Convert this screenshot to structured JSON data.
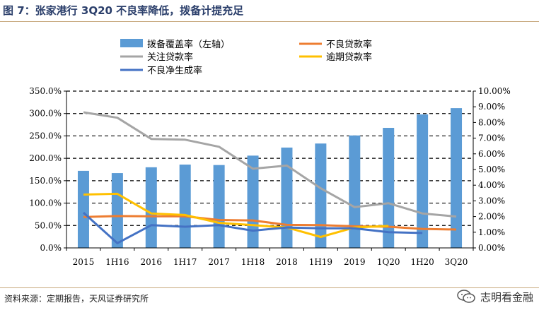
{
  "header": {
    "title": "图 7：张家港行 3Q20 不良率降低，拨备计提充足"
  },
  "footer": {
    "source": "资料来源：定期报告，天风证券研究所",
    "watermark_text": "志明看金融",
    "watermark_icon": "wechat-icon"
  },
  "chart_data": {
    "type": "bar",
    "categories": [
      "2015",
      "1H16",
      "2016",
      "1H17",
      "2017",
      "1H18",
      "2018",
      "1H19",
      "2019",
      "1Q20",
      "1H20",
      "3Q20"
    ],
    "series": [
      {
        "name": "拨备覆盖率（左轴）",
        "type": "bar",
        "axis": "left",
        "color": "#5b9bd5",
        "values": [
          172,
          167,
          180,
          186,
          185,
          206,
          224,
          233,
          251,
          268,
          298,
          312
        ]
      },
      {
        "name": "不良贷款率",
        "type": "line",
        "axis": "right",
        "color": "#ed7d31",
        "values": [
          1.97,
          2.03,
          2.02,
          2.02,
          1.78,
          1.75,
          1.47,
          1.45,
          1.38,
          1.35,
          1.21,
          1.17
        ]
      },
      {
        "name": "关注贷款率",
        "type": "line",
        "axis": "right",
        "color": "#a5a5a5",
        "values": [
          8.65,
          8.3,
          6.95,
          6.9,
          6.45,
          5.05,
          5.25,
          3.8,
          2.6,
          2.85,
          2.2,
          2.0
        ]
      },
      {
        "name": "逾期贷款率",
        "type": "line",
        "axis": "right",
        "color": "#ffc000",
        "values": [
          3.4,
          3.45,
          2.2,
          2.1,
          1.6,
          1.45,
          1.3,
          0.7,
          1.3,
          1.4,
          null,
          null
        ]
      },
      {
        "name": "不良净生成率",
        "type": "line",
        "axis": "right",
        "color": "#4472c4",
        "values": [
          2.25,
          0.3,
          1.45,
          1.35,
          1.45,
          1.1,
          1.3,
          1.25,
          1.25,
          1.0,
          0.95,
          null
        ]
      }
    ],
    "left_axis": {
      "ylim": [
        0,
        350
      ],
      "ticks": [
        0,
        50,
        100,
        150,
        200,
        250,
        300,
        350
      ],
      "tick_labels": [
        "0.0%",
        "50.0%",
        "100.0%",
        "150.0%",
        "200.0%",
        "250.0%",
        "300.0%",
        "350.0%"
      ]
    },
    "right_axis": {
      "ylim": [
        0,
        10
      ],
      "ticks": [
        0,
        1,
        2,
        3,
        4,
        5,
        6,
        7,
        8,
        9,
        10
      ],
      "tick_labels": [
        "0.00%",
        "1.00%",
        "2.00%",
        "3.00%",
        "4.00%",
        "5.00%",
        "6.00%",
        "7.00%",
        "8.00%",
        "9.00%",
        "10.00%"
      ]
    },
    "grid": "horizontal dashed",
    "legend_position": "top"
  }
}
